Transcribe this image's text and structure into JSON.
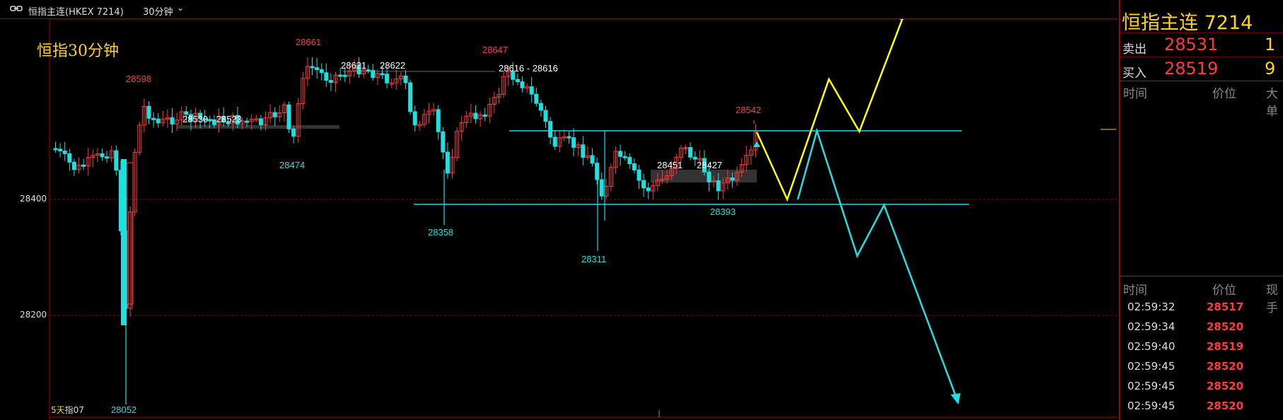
{
  "toolbar": {
    "symbol": "恒指主连(HKEX 7214)",
    "timeframe": "30分钟",
    "timeframe_chevron": "⌄",
    "link_icon": "link-icon"
  },
  "chart": {
    "title": "恒指30分钟",
    "y_ticks": [
      "28400",
      "28200"
    ],
    "bottom_left_days": "5天",
    "bottom_left_code": "指07",
    "colors": {
      "up": "#ff3b3b",
      "down": "#1ee0e0",
      "projection_up": "#ffff00",
      "projection_down": "#1ee0e0",
      "grid": "#8b0000"
    }
  },
  "chart_data": {
    "type": "candlestick",
    "title": "恒指30分钟",
    "y_ticks": [
      28400,
      28200
    ],
    "annotations": {
      "highs": [
        28598,
        28661,
        28647,
        28542
      ],
      "lows": [
        28474,
        28358,
        28311,
        28393,
        28052
      ],
      "ranges": [
        "28530 - 28523",
        "28621",
        "28622",
        "28616 - 28616",
        "28451",
        "28427"
      ]
    },
    "levels": [
      28503,
      28391
    ]
  },
  "quote": {
    "title": "恒指主连  7214",
    "sell_label": "卖出",
    "sell_price": "28531",
    "sell_qty": "1",
    "buy_label": "买入",
    "buy_price": "28519",
    "buy_qty": "9",
    "hdr1": {
      "time": "时间",
      "price": "价位",
      "big": "大单"
    },
    "hdr2": {
      "time": "时间",
      "price": "价位",
      "now": "现手"
    },
    "ticks": [
      {
        "time": "02:59:32",
        "price": "28517"
      },
      {
        "time": "02:59:34",
        "price": "28520"
      },
      {
        "time": "02:59:40",
        "price": "28519"
      },
      {
        "time": "02:59:45",
        "price": "28520"
      },
      {
        "time": "02:59:45",
        "price": "28520"
      },
      {
        "time": "02:59:45",
        "price": "28520"
      }
    ]
  }
}
